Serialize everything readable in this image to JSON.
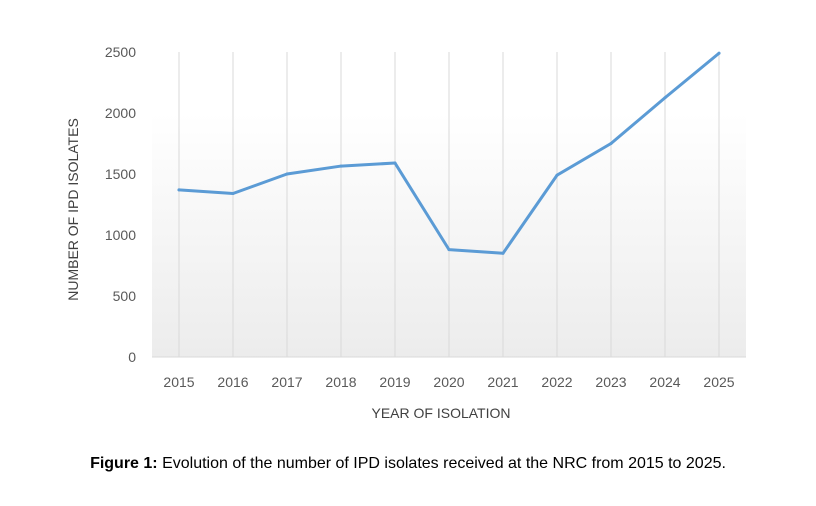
{
  "chart_data": {
    "type": "line",
    "title": "",
    "xlabel": "YEAR OF ISOLATION",
    "ylabel": "NUMBER OF IPD ISOLATES",
    "categories": [
      "2015",
      "2016",
      "2017",
      "2018",
      "2019",
      "2020",
      "2021",
      "2022",
      "2023",
      "2024",
      "2025"
    ],
    "series": [
      {
        "values": [
          1370,
          1340,
          1500,
          1565,
          1590,
          880,
          850,
          1490,
          1750,
          2125,
          2490
        ],
        "color": "#5b9bd5"
      }
    ],
    "ylim": [
      0,
      2500
    ],
    "yticks": [
      0,
      500,
      1000,
      1500,
      2000,
      2500
    ],
    "grid": "vertical",
    "legend": "none"
  },
  "caption": {
    "label": "Figure 1:",
    "text": " Evolution of the number of IPD isolates received at the NRC from 2015 to 2025."
  }
}
